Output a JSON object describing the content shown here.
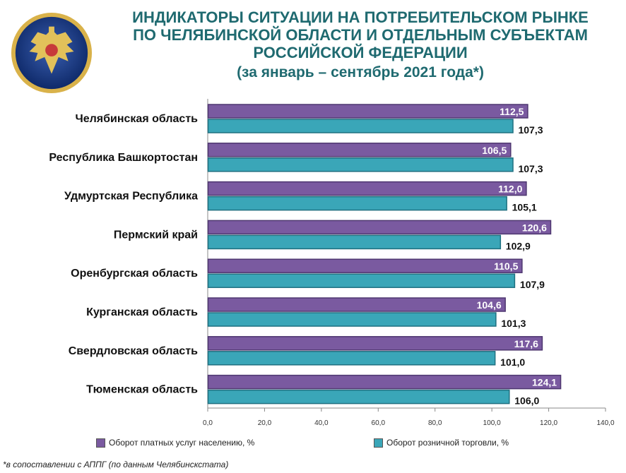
{
  "header": {
    "title_lines": [
      "ИНДИКАТОРЫ СИТУАЦИИ НА ПОТРЕБИТЕЛЬСКОМ РЫНКЕ",
      "ПО ЧЕЛЯБИНСКОЙ ОБЛАСТИ И ОТДЕЛЬНЫМ СУБЪЕКТАМ",
      "РОССИЙСКОЙ ФЕДЕРАЦИИ"
    ],
    "subtitle": "(за январь – сентябрь 2021 года*)"
  },
  "colors": {
    "title": "#1f6a70",
    "series_services": "#7a5aa0",
    "series_retail": "#3aa6b8"
  },
  "footnote": "*в сопоставлении с АППГ (по данным Челябинскстата)",
  "chart_data": {
    "type": "bar",
    "orientation": "horizontal",
    "categories": [
      "Челябинская область",
      "Республика Башкортостан",
      "Удмуртская Республика",
      "Пермский край",
      "Оренбургская область",
      "Курганская область",
      "Свердловская область",
      "Тюменская область"
    ],
    "series": [
      {
        "name": "Оборот платных услуг населению, %",
        "values": [
          112.5,
          106.5,
          112.0,
          120.6,
          110.5,
          104.6,
          117.6,
          124.1
        ],
        "labels": [
          "112,5",
          "106,5",
          "112,0",
          "120,6",
          "110,5",
          "104,6",
          "117,6",
          "124,1"
        ]
      },
      {
        "name": "Оборот розничной торговли, %",
        "values": [
          107.3,
          107.3,
          105.1,
          102.9,
          107.9,
          101.3,
          101.0,
          106.0
        ],
        "labels": [
          "107,3",
          "107,3",
          "105,1",
          "102,9",
          "107,9",
          "101,3",
          "101,0",
          "106,0"
        ]
      }
    ],
    "xlim": [
      0,
      140
    ],
    "ticks": [
      "0,0",
      "20,0",
      "40,0",
      "60,0",
      "80,0",
      "100,0",
      "120,0",
      "140,0"
    ],
    "grid": false,
    "legend": "bottom"
  }
}
